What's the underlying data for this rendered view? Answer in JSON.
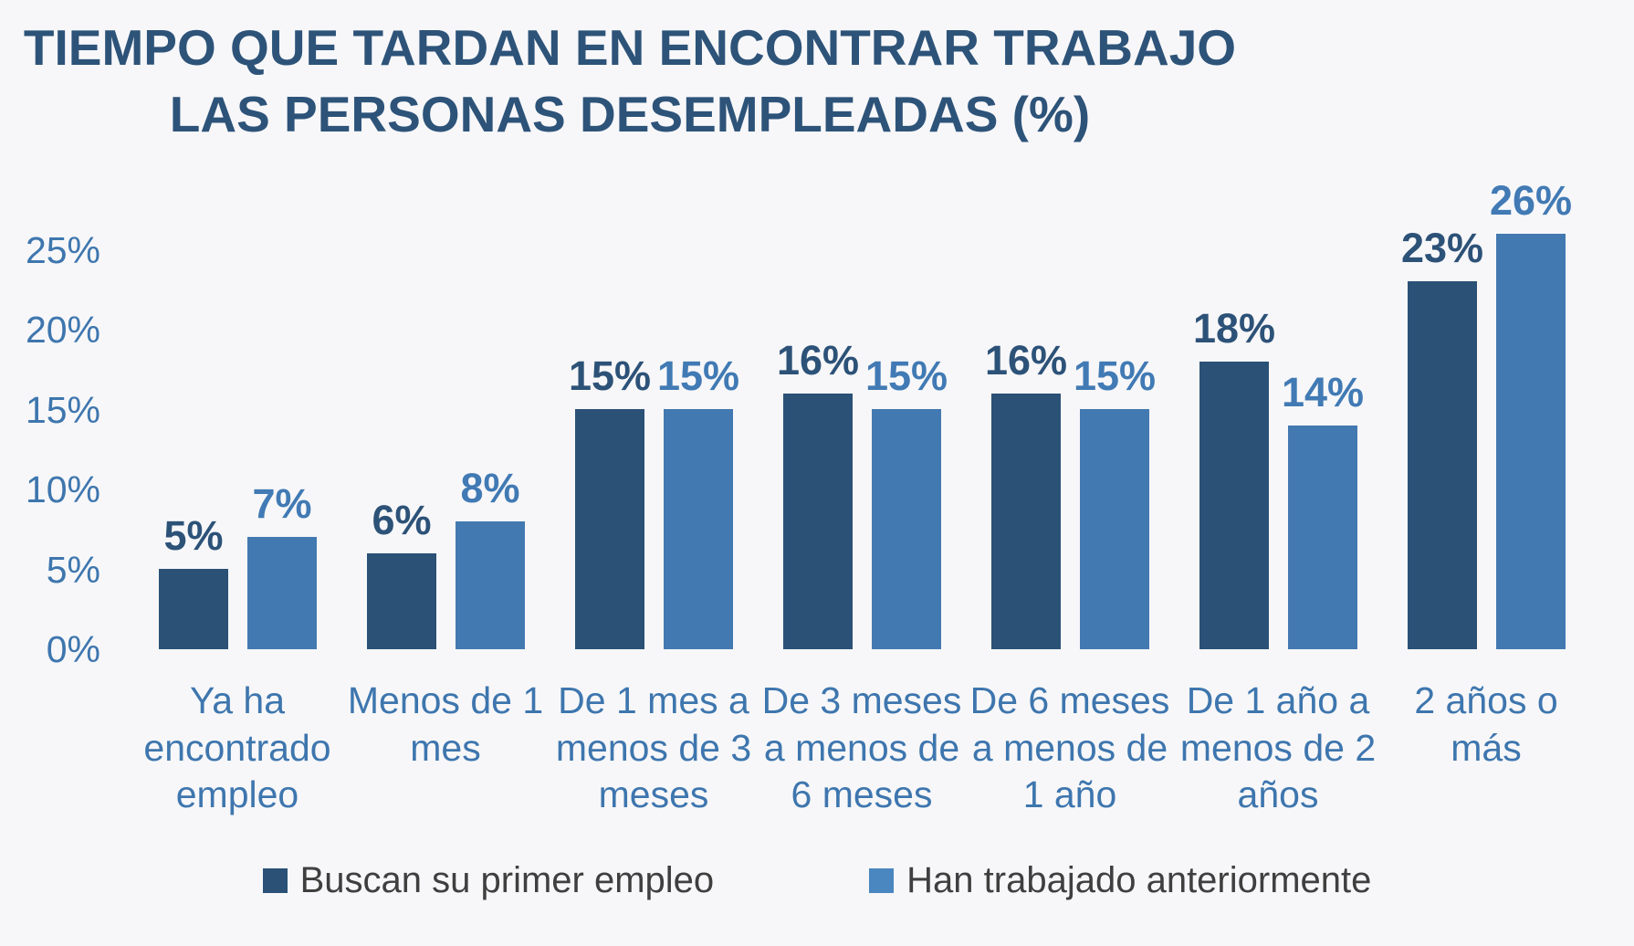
{
  "chart_data": {
    "type": "bar",
    "title_lines": [
      "TIEMPO QUE TARDAN EN ENCONTRAR TRABAJO",
      "LAS PERSONAS DESEMPLEADAS (%)"
    ],
    "categories": [
      "Ya ha\nencontrado\nempleo",
      "Menos de 1\nmes",
      "De 1 mes a\nmenos de 3\nmeses",
      "De 3 meses\na menos de\n6 meses",
      "De 6 meses\na menos de\n1 año",
      "De 1 año a\nmenos de 2\naños",
      "2 años o\nmás"
    ],
    "series": [
      {
        "name": "Buscan su primer empleo",
        "color": "#2b5176",
        "values": [
          5,
          6,
          15,
          16,
          16,
          18,
          23
        ]
      },
      {
        "name": "Han trabajado anteriormente",
        "color": "#4379b1",
        "values": [
          7,
          8,
          15,
          15,
          15,
          14,
          26
        ]
      }
    ],
    "data_labels": [
      [
        "5%",
        "6%",
        "15%",
        "16%",
        "16%",
        "18%",
        "23%"
      ],
      [
        "7%",
        "8%",
        "15%",
        "15%",
        "15%",
        "14%",
        "26%"
      ]
    ],
    "y_ticks": [
      "0%",
      "5%",
      "10%",
      "15%",
      "20%",
      "25%"
    ],
    "ylim": [
      0,
      25
    ],
    "value_suffix": "%",
    "grid": "off",
    "legend_position": "bottom",
    "colors": {
      "background": "#f7f7f9",
      "title": "#2d5379",
      "axis_labels": "#3e76ae",
      "series_dark": "#2b5176",
      "series_light": "#4379b1",
      "legend_text": "#3f3f3f"
    }
  }
}
